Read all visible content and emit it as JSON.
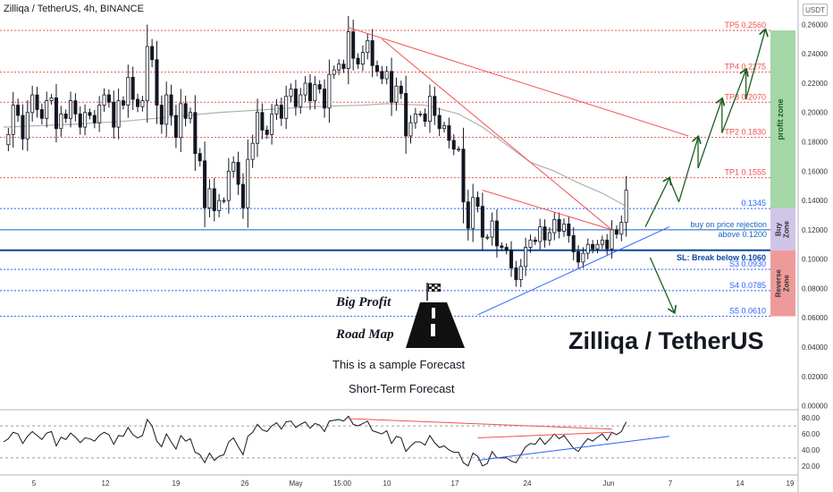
{
  "header": {
    "title": "Zilliqa / TetherUS, 4h, BINANCE",
    "currency_badge": "USDT"
  },
  "annotations": {
    "line1": "Big Profit",
    "line2": "Road Map",
    "line3": "This is a sample Forecast",
    "line4": "Short-Term Forecast",
    "main_title": "Zilliqa / TetherUS"
  },
  "zones": [
    {
      "name": "profit zone",
      "from": 0.1345,
      "to": 0.256,
      "color": "#a5d6a7"
    },
    {
      "name": "Buy Zone",
      "from": 0.106,
      "to": 0.1345,
      "color": "#d1c4e9"
    },
    {
      "name": "Reverse Zone",
      "from": 0.061,
      "to": 0.106,
      "color": "#ef9a9a"
    }
  ],
  "chart_data": {
    "type": "candlestick",
    "title": "Zilliqa / TetherUS, 4h, BINANCE",
    "y_axis_ticks": [
      "0.26000",
      "0.24000",
      "0.22000",
      "0.20000",
      "0.18000",
      "0.16000",
      "0.14000",
      "0.12000",
      "0.10000",
      "0.08000",
      "0.06000",
      "0.04000",
      "0.02000",
      "0.00000"
    ],
    "ylim": [
      -0.0015,
      0.2633
    ],
    "x_axis_ticks": [
      "5",
      "12",
      "19",
      "26",
      "May",
      "15:00",
      "10",
      "17",
      "24",
      "Jun",
      "7",
      "14",
      "19"
    ],
    "levels": [
      {
        "label": "TP5 0.2560",
        "value": 0.256,
        "color": "#ef5350"
      },
      {
        "label": "TP4 0.2275",
        "value": 0.2275,
        "color": "#ef5350"
      },
      {
        "label": "TP3 0.2070",
        "value": 0.207,
        "color": "#ef5350"
      },
      {
        "label": "TP2 0.1830",
        "value": 0.183,
        "color": "#ef5350"
      },
      {
        "label": "TP1 0.1555",
        "value": 0.1555,
        "color": "#ef5350"
      },
      {
        "label": "0.1345",
        "value": 0.1345,
        "color": "#2962ff"
      },
      {
        "label": "buy on price rejection",
        "label2": "above 0.1200",
        "value": 0.12,
        "color": "#1565c0"
      },
      {
        "label": "SL: Break below 0.1060",
        "value": 0.106,
        "color": "#0d47a1"
      },
      {
        "label": "S3 0.0930",
        "value": 0.093,
        "color": "#2962ff"
      },
      {
        "label": "S4 0.0785",
        "value": 0.0785,
        "color": "#2962ff"
      },
      {
        "label": "S5 0.0610",
        "value": 0.061,
        "color": "#2962ff"
      }
    ],
    "price_path": [
      0.178,
      0.185,
      0.205,
      0.198,
      0.182,
      0.2,
      0.212,
      0.202,
      0.196,
      0.208,
      0.21,
      0.189,
      0.199,
      0.196,
      0.208,
      0.199,
      0.19,
      0.2,
      0.198,
      0.193,
      0.205,
      0.212,
      0.207,
      0.19,
      0.208,
      0.205,
      0.224,
      0.209,
      0.204,
      0.208,
      0.245,
      0.236,
      0.205,
      0.192,
      0.212,
      0.198,
      0.183,
      0.206,
      0.196,
      0.2,
      0.172,
      0.167,
      0.135,
      0.148,
      0.133,
      0.14,
      0.14,
      0.16,
      0.166,
      0.151,
      0.135,
      0.168,
      0.179,
      0.2,
      0.188,
      0.185,
      0.199,
      0.205,
      0.196,
      0.211,
      0.216,
      0.204,
      0.212,
      0.22,
      0.208,
      0.219,
      0.216,
      0.203,
      0.226,
      0.229,
      0.233,
      0.23,
      0.255,
      0.237,
      0.233,
      0.241,
      0.249,
      0.232,
      0.228,
      0.223,
      0.228,
      0.207,
      0.218,
      0.213,
      0.184,
      0.193,
      0.199,
      0.199,
      0.194,
      0.211,
      0.198,
      0.189,
      0.191,
      0.181,
      0.175,
      0.175,
      0.139,
      0.121,
      0.142,
      0.136,
      0.115,
      0.115,
      0.126,
      0.109,
      0.108,
      0.106,
      0.094,
      0.086,
      0.095,
      0.108,
      0.113,
      0.112,
      0.122,
      0.113,
      0.118,
      0.127,
      0.119,
      0.124,
      0.116,
      0.105,
      0.098,
      0.104,
      0.11,
      0.107,
      0.11,
      0.113,
      0.107,
      0.12,
      0.117,
      0.125,
      0.147
    ],
    "price_x_range": [
      0,
      131
    ],
    "sma_path": [
      [
        0,
        0.19
      ],
      [
        15,
        0.192
      ],
      [
        25,
        0.194
      ],
      [
        35,
        0.197
      ],
      [
        45,
        0.2
      ],
      [
        55,
        0.202
      ],
      [
        65,
        0.204
      ],
      [
        75,
        0.205
      ],
      [
        80,
        0.206
      ],
      [
        88,
        0.205
      ],
      [
        95,
        0.199
      ],
      [
        100,
        0.19
      ],
      [
        105,
        0.178
      ],
      [
        110,
        0.166
      ],
      [
        115,
        0.16
      ],
      [
        120,
        0.152
      ],
      [
        125,
        0.145
      ],
      [
        130,
        0.136
      ]
    ],
    "trendlines": [
      {
        "name": "upper-trendline-1",
        "from": [
          72,
          0.258
        ],
        "to": [
          143,
          0.184
        ],
        "color": "#ef5350"
      },
      {
        "name": "upper-trendline-2",
        "from": [
          79,
          0.25
        ],
        "to": [
          127,
          0.12
        ],
        "color": "#ef5350"
      },
      {
        "name": "upper-trendline-3",
        "from": [
          100,
          0.147
        ],
        "to": [
          127,
          0.12
        ],
        "color": "#ef5350"
      },
      {
        "name": "support-trendline",
        "from": [
          99,
          0.062
        ],
        "to": [
          139,
          0.122
        ],
        "color": "#2962ff"
      }
    ],
    "forecast_path": [
      [
        134,
        0.122
      ],
      [
        139,
        0.155
      ],
      [
        141,
        0.139
      ],
      [
        145,
        0.183
      ],
      [
        145,
        0.162
      ],
      [
        150,
        0.209
      ],
      [
        150,
        0.186
      ],
      [
        155,
        0.229
      ],
      [
        155,
        0.209
      ],
      [
        159,
        0.256
      ]
    ],
    "reverse_arrow": [
      [
        135,
        0.101
      ],
      [
        140,
        0.064
      ]
    ],
    "rsi": {
      "y_axis_ticks": [
        "80.00",
        "60.00",
        "40.00",
        "20.00"
      ],
      "levels": [
        70,
        30
      ],
      "values": [
        50,
        54,
        62,
        60,
        48,
        57,
        63,
        58,
        53,
        61,
        63,
        45,
        56,
        53,
        61,
        56,
        49,
        55,
        54,
        51,
        58,
        62,
        59,
        47,
        58,
        57,
        68,
        59,
        55,
        58,
        78,
        70,
        51,
        44,
        60,
        50,
        41,
        58,
        51,
        54,
        37,
        34,
        24,
        36,
        27,
        32,
        34,
        50,
        55,
        44,
        34,
        57,
        62,
        72,
        65,
        63,
        70,
        74,
        66,
        75,
        76,
        68,
        72,
        75,
        67,
        73,
        71,
        63,
        76,
        77,
        78,
        76,
        82,
        72,
        70,
        73,
        76,
        64,
        62,
        60,
        64,
        48,
        57,
        55,
        38,
        45,
        50,
        50,
        46,
        58,
        49,
        43,
        45,
        40,
        37,
        37,
        24,
        20,
        36,
        32,
        20,
        23,
        38,
        30,
        30,
        30,
        26,
        24,
        34,
        44,
        48,
        47,
        55,
        47,
        53,
        60,
        54,
        58,
        50,
        42,
        38,
        47,
        54,
        51,
        56,
        60,
        52,
        62,
        59,
        63,
        75
      ],
      "trendlines": [
        {
          "from": [
            72,
            79
          ],
          "to": [
            127,
            66
          ]
        },
        {
          "from": [
            99,
            55
          ],
          "to": [
            127,
            62
          ]
        },
        {
          "from": [
            99,
            27
          ],
          "to": [
            139,
            57
          ]
        }
      ]
    }
  }
}
